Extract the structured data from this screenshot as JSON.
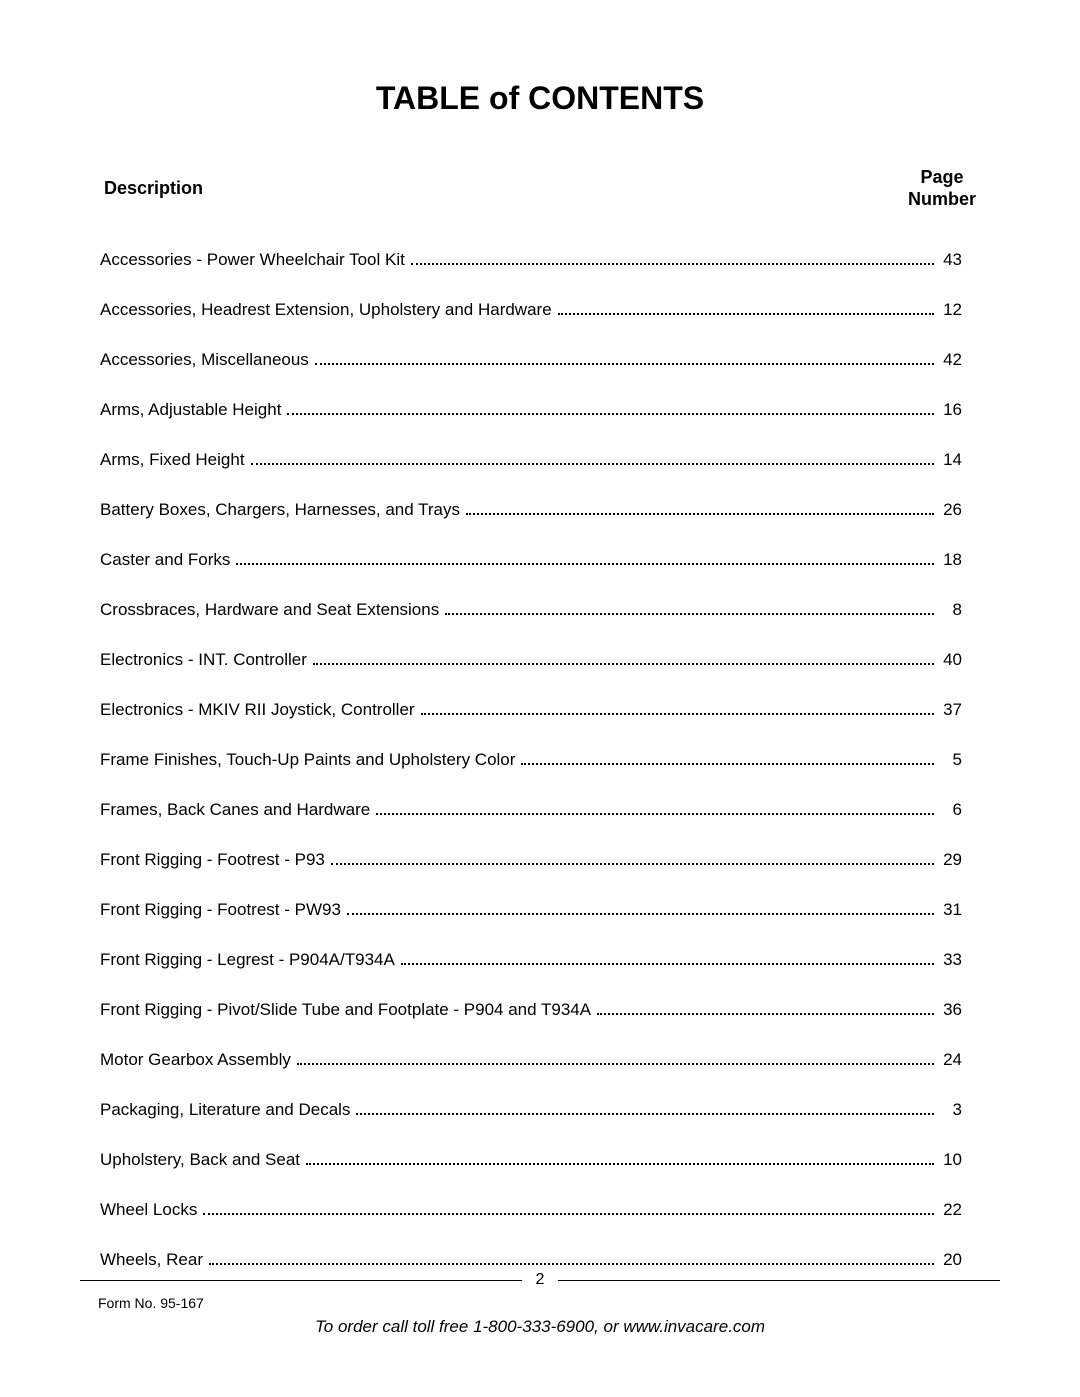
{
  "title": "TABLE of CONTENTS",
  "headers": {
    "description": "Description",
    "page_line1": "Page",
    "page_line2": "Number"
  },
  "entries": [
    {
      "desc": "Accessories - Power Wheelchair Tool Kit",
      "page": "43"
    },
    {
      "desc": "Accessories, Headrest Extension, Upholstery and Hardware",
      "page": "12"
    },
    {
      "desc": "Accessories, Miscellaneous",
      "page": "42"
    },
    {
      "desc": "Arms, Adjustable Height",
      "page": "16"
    },
    {
      "desc": "Arms, Fixed Height",
      "page": "14"
    },
    {
      "desc": "Battery Boxes, Chargers, Harnesses, and Trays",
      "page": "26"
    },
    {
      "desc": "Caster and Forks",
      "page": "18"
    },
    {
      "desc": "Crossbraces, Hardware and Seat Extensions",
      "page": "8"
    },
    {
      "desc": "Electronics - INT. Controller",
      "page": "40"
    },
    {
      "desc": "Electronics - MKIV RII Joystick, Controller",
      "page": "37"
    },
    {
      "desc": "Frame Finishes, Touch-Up Paints and Upholstery Color",
      "page": "5"
    },
    {
      "desc": "Frames, Back Canes and Hardware",
      "page": "6"
    },
    {
      "desc": "Front Rigging - Footrest - P93",
      "page": "29"
    },
    {
      "desc": "Front Rigging - Footrest - PW93",
      "page": "31"
    },
    {
      "desc": "Front Rigging - Legrest - P904A/T934A",
      "page": "33"
    },
    {
      "desc": "Front Rigging - Pivot/Slide Tube and Footplate - P904 and T934A",
      "page": "36"
    },
    {
      "desc": "Motor Gearbox Assembly",
      "page": "24"
    },
    {
      "desc": "Packaging, Literature and Decals",
      "page": "3"
    },
    {
      "desc": "Upholstery, Back and Seat",
      "page": "10"
    },
    {
      "desc": "Wheel Locks",
      "page": "22"
    },
    {
      "desc": "Wheels, Rear",
      "page": "20"
    }
  ],
  "footer": {
    "page_number": "2",
    "form_no": "Form No. 95-167",
    "order_text": "To order call toll free 1-800-333-6900, or www.invacare.com"
  },
  "colors": {
    "background": "#ffffff",
    "text": "#000000"
  }
}
